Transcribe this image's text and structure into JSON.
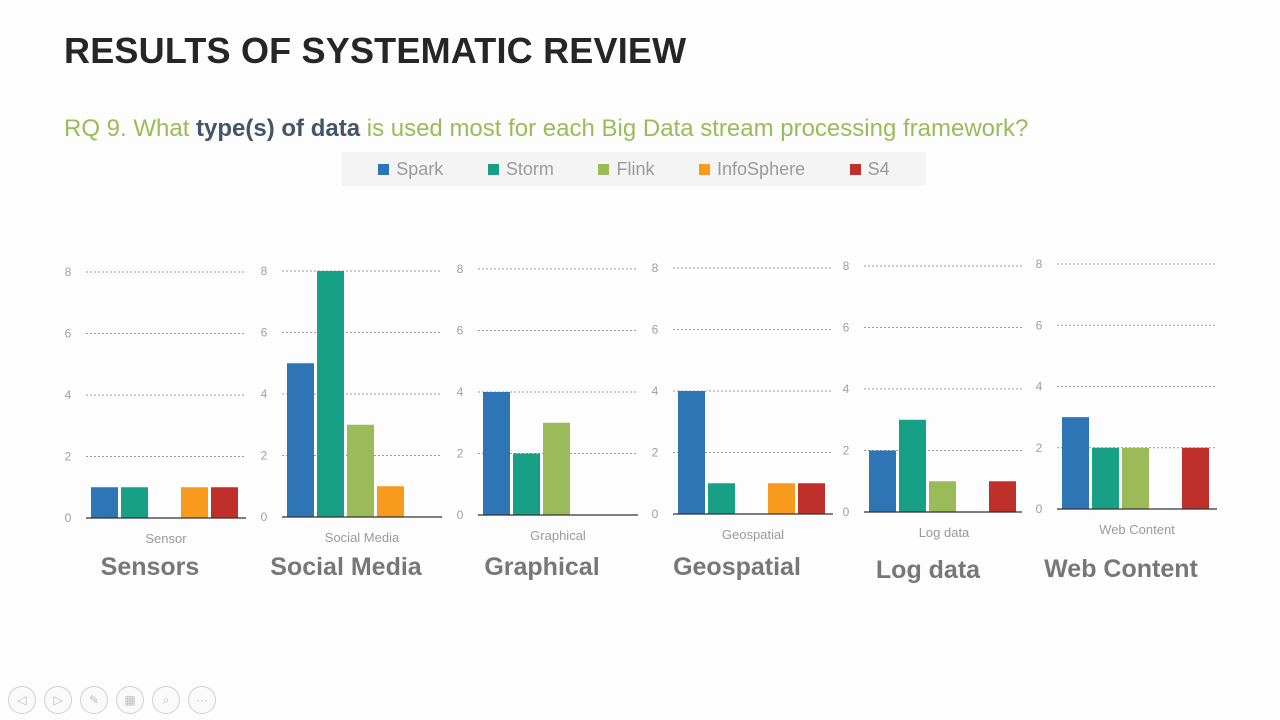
{
  "slide": {
    "title": "RESULTS OF SYSTEMATIC REVIEW",
    "question_prefix": "RQ 9. What ",
    "question_highlight": "type(s) of data",
    "question_suffix": " is used most for each Big Data stream processing framework?"
  },
  "legend": [
    {
      "name": "Spark",
      "color": "#2e75b6"
    },
    {
      "name": "Storm",
      "color": "#17a085"
    },
    {
      "name": "Flink",
      "color": "#9bbb59"
    },
    {
      "name": "InfoSphere",
      "color": "#f79a1e"
    },
    {
      "name": "S4",
      "color": "#c0302a"
    }
  ],
  "chart_data": [
    {
      "type": "bar",
      "title": "Sensors",
      "xlabel": "Sensor",
      "ylim": [
        0,
        8
      ],
      "yticks": [
        0,
        2,
        4,
        6,
        8
      ],
      "series": [
        {
          "name": "Spark",
          "values": [
            1
          ]
        },
        {
          "name": "Storm",
          "values": [
            1
          ]
        },
        {
          "name": "Flink",
          "values": [
            0
          ]
        },
        {
          "name": "InfoSphere",
          "values": [
            1
          ]
        },
        {
          "name": "S4",
          "values": [
            1
          ]
        }
      ]
    },
    {
      "type": "bar",
      "title": "Social Media",
      "xlabel": "Social Media",
      "ylim": [
        0,
        8
      ],
      "yticks": [
        0,
        2,
        4,
        6,
        8
      ],
      "series": [
        {
          "name": "Spark",
          "values": [
            5
          ]
        },
        {
          "name": "Storm",
          "values": [
            8
          ]
        },
        {
          "name": "Flink",
          "values": [
            3
          ]
        },
        {
          "name": "InfoSphere",
          "values": [
            1
          ]
        },
        {
          "name": "S4",
          "values": [
            0
          ]
        }
      ]
    },
    {
      "type": "bar",
      "title": "Graphical",
      "xlabel": "Graphical",
      "ylim": [
        0,
        8
      ],
      "yticks": [
        0,
        2,
        4,
        6,
        8
      ],
      "series": [
        {
          "name": "Spark",
          "values": [
            4
          ]
        },
        {
          "name": "Storm",
          "values": [
            2
          ]
        },
        {
          "name": "Flink",
          "values": [
            3
          ]
        },
        {
          "name": "InfoSphere",
          "values": [
            0
          ]
        },
        {
          "name": "S4",
          "values": [
            0
          ]
        }
      ]
    },
    {
      "type": "bar",
      "title": "Geospatial",
      "xlabel": "Geospatial",
      "ylim": [
        0,
        8
      ],
      "yticks": [
        0,
        2,
        4,
        6,
        8
      ],
      "series": [
        {
          "name": "Spark",
          "values": [
            4
          ]
        },
        {
          "name": "Storm",
          "values": [
            1
          ]
        },
        {
          "name": "Flink",
          "values": [
            0
          ]
        },
        {
          "name": "InfoSphere",
          "values": [
            1
          ]
        },
        {
          "name": "S4",
          "values": [
            1
          ]
        }
      ]
    },
    {
      "type": "bar",
      "title": "Log data",
      "xlabel": "Log data",
      "ylim": [
        0,
        8
      ],
      "yticks": [
        0,
        2,
        4,
        6,
        8
      ],
      "series": [
        {
          "name": "Spark",
          "values": [
            2
          ]
        },
        {
          "name": "Storm",
          "values": [
            3
          ]
        },
        {
          "name": "Flink",
          "values": [
            1
          ]
        },
        {
          "name": "InfoSphere",
          "values": [
            0
          ]
        },
        {
          "name": "S4",
          "values": [
            1
          ]
        }
      ]
    },
    {
      "type": "bar",
      "title": "Web Content",
      "xlabel": "Web Content",
      "ylim": [
        0,
        8
      ],
      "yticks": [
        0,
        2,
        4,
        6,
        8
      ],
      "series": [
        {
          "name": "Spark",
          "values": [
            3
          ]
        },
        {
          "name": "Storm",
          "values": [
            2
          ]
        },
        {
          "name": "Flink",
          "values": [
            2
          ]
        },
        {
          "name": "InfoSphere",
          "values": [
            0
          ]
        },
        {
          "name": "S4",
          "values": [
            2
          ]
        }
      ]
    }
  ],
  "nav": [
    {
      "icon": "prev-icon",
      "glyph": "◁"
    },
    {
      "icon": "next-icon",
      "glyph": "▷"
    },
    {
      "icon": "pen-icon",
      "glyph": "✎"
    },
    {
      "icon": "slides-icon",
      "glyph": "▦"
    },
    {
      "icon": "zoom-icon",
      "glyph": "⌕"
    },
    {
      "icon": "more-icon",
      "glyph": "···"
    }
  ]
}
